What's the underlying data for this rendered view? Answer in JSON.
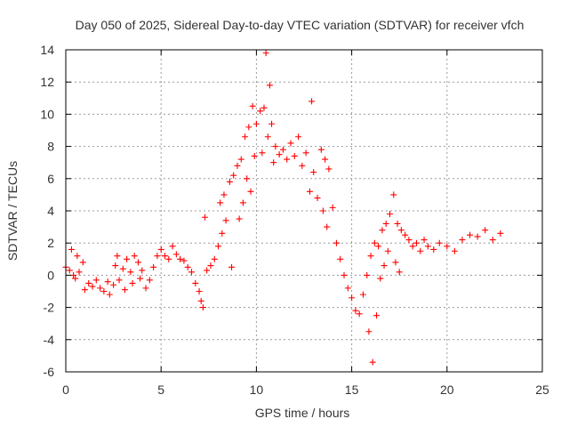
{
  "chart_data": {
    "type": "scatter",
    "title": "Day 050 of 2025, Sidereal Day-to-day VTEC variation (SDTVAR) for receiver vfch",
    "xlabel": "GPS time / hours",
    "ylabel": "SDTVAR / TECUs",
    "xlim": [
      0,
      25
    ],
    "ylim": [
      -6,
      14
    ],
    "xticks": [
      0,
      5,
      10,
      15,
      20,
      25
    ],
    "yticks": [
      -6,
      -4,
      -2,
      0,
      2,
      4,
      6,
      8,
      10,
      12,
      14
    ],
    "grid": true,
    "marker": "plus",
    "color": "#ff0000",
    "series": [
      {
        "name": "SDTVAR",
        "points": [
          [
            0.0,
            0.5
          ],
          [
            0.2,
            0.3
          ],
          [
            0.4,
            0.0
          ],
          [
            0.5,
            -0.2
          ],
          [
            0.7,
            0.2
          ],
          [
            0.3,
            1.6
          ],
          [
            0.6,
            1.2
          ],
          [
            0.9,
            0.8
          ],
          [
            1.0,
            -0.9
          ],
          [
            1.2,
            -0.5
          ],
          [
            1.4,
            -0.7
          ],
          [
            1.6,
            -0.3
          ],
          [
            1.8,
            -0.8
          ],
          [
            2.0,
            -1.0
          ],
          [
            2.2,
            -0.4
          ],
          [
            2.3,
            -1.2
          ],
          [
            2.5,
            -0.6
          ],
          [
            2.6,
            0.6
          ],
          [
            2.7,
            1.2
          ],
          [
            2.8,
            -0.3
          ],
          [
            3.0,
            0.4
          ],
          [
            3.1,
            -0.9
          ],
          [
            3.2,
            1.0
          ],
          [
            3.4,
            0.2
          ],
          [
            3.5,
            -0.5
          ],
          [
            3.6,
            1.2
          ],
          [
            3.8,
            0.8
          ],
          [
            3.9,
            -0.2
          ],
          [
            4.0,
            0.3
          ],
          [
            4.2,
            -0.8
          ],
          [
            4.4,
            -0.3
          ],
          [
            4.6,
            0.5
          ],
          [
            4.8,
            1.2
          ],
          [
            5.0,
            1.6
          ],
          [
            5.2,
            1.2
          ],
          [
            5.4,
            1.0
          ],
          [
            5.6,
            1.8
          ],
          [
            5.8,
            1.3
          ],
          [
            6.0,
            1.0
          ],
          [
            6.2,
            0.9
          ],
          [
            6.4,
            0.5
          ],
          [
            6.6,
            0.2
          ],
          [
            6.8,
            -0.5
          ],
          [
            7.0,
            -1.0
          ],
          [
            7.1,
            -1.6
          ],
          [
            7.2,
            -2.0
          ],
          [
            7.3,
            3.6
          ],
          [
            7.4,
            0.3
          ],
          [
            7.6,
            0.6
          ],
          [
            7.8,
            1.0
          ],
          [
            8.0,
            1.8
          ],
          [
            8.1,
            4.5
          ],
          [
            8.2,
            2.6
          ],
          [
            8.3,
            5.0
          ],
          [
            8.4,
            3.4
          ],
          [
            8.6,
            5.8
          ],
          [
            8.7,
            0.5
          ],
          [
            8.8,
            6.2
          ],
          [
            9.0,
            6.8
          ],
          [
            9.1,
            3.5
          ],
          [
            9.2,
            7.2
          ],
          [
            9.3,
            4.5
          ],
          [
            9.4,
            8.6
          ],
          [
            9.5,
            6.0
          ],
          [
            9.6,
            9.2
          ],
          [
            9.7,
            5.2
          ],
          [
            9.8,
            10.5
          ],
          [
            9.9,
            7.4
          ],
          [
            10.0,
            9.4
          ],
          [
            10.2,
            10.2
          ],
          [
            10.3,
            7.6
          ],
          [
            10.4,
            10.4
          ],
          [
            10.5,
            13.8
          ],
          [
            10.6,
            8.6
          ],
          [
            10.7,
            11.8
          ],
          [
            10.8,
            9.4
          ],
          [
            10.9,
            7.0
          ],
          [
            11.0,
            8.0
          ],
          [
            11.2,
            7.5
          ],
          [
            11.4,
            7.8
          ],
          [
            11.6,
            7.2
          ],
          [
            11.8,
            8.2
          ],
          [
            12.0,
            7.4
          ],
          [
            12.2,
            8.6
          ],
          [
            12.4,
            6.8
          ],
          [
            12.6,
            7.6
          ],
          [
            12.8,
            5.2
          ],
          [
            12.9,
            10.8
          ],
          [
            13.0,
            6.4
          ],
          [
            13.2,
            4.8
          ],
          [
            13.4,
            7.8
          ],
          [
            13.5,
            4.0
          ],
          [
            13.6,
            7.2
          ],
          [
            13.7,
            3.0
          ],
          [
            13.8,
            6.6
          ],
          [
            14.0,
            4.2
          ],
          [
            14.2,
            2.0
          ],
          [
            14.4,
            1.0
          ],
          [
            14.6,
            0.0
          ],
          [
            14.8,
            -0.8
          ],
          [
            15.0,
            -1.4
          ],
          [
            15.2,
            -2.2
          ],
          [
            15.4,
            -2.4
          ],
          [
            15.6,
            -1.2
          ],
          [
            15.8,
            0.0
          ],
          [
            15.9,
            -3.5
          ],
          [
            16.0,
            1.2
          ],
          [
            16.1,
            -5.4
          ],
          [
            16.2,
            2.0
          ],
          [
            16.3,
            -2.5
          ],
          [
            16.4,
            1.8
          ],
          [
            16.5,
            -0.2
          ],
          [
            16.6,
            2.8
          ],
          [
            16.7,
            0.6
          ],
          [
            16.8,
            3.2
          ],
          [
            16.9,
            1.5
          ],
          [
            17.0,
            3.8
          ],
          [
            17.2,
            5.0
          ],
          [
            17.3,
            0.8
          ],
          [
            17.4,
            3.2
          ],
          [
            17.5,
            0.2
          ],
          [
            17.6,
            2.8
          ],
          [
            17.8,
            2.5
          ],
          [
            18.0,
            2.2
          ],
          [
            18.2,
            1.8
          ],
          [
            18.4,
            2.0
          ],
          [
            18.6,
            1.5
          ],
          [
            18.8,
            2.2
          ],
          [
            19.0,
            1.8
          ],
          [
            19.3,
            1.6
          ],
          [
            19.6,
            2.0
          ],
          [
            20.0,
            1.8
          ],
          [
            20.4,
            1.5
          ],
          [
            20.8,
            2.2
          ],
          [
            21.2,
            2.5
          ],
          [
            21.6,
            2.4
          ],
          [
            22.0,
            2.8
          ],
          [
            22.4,
            2.2
          ],
          [
            22.8,
            2.6
          ]
        ]
      }
    ]
  }
}
